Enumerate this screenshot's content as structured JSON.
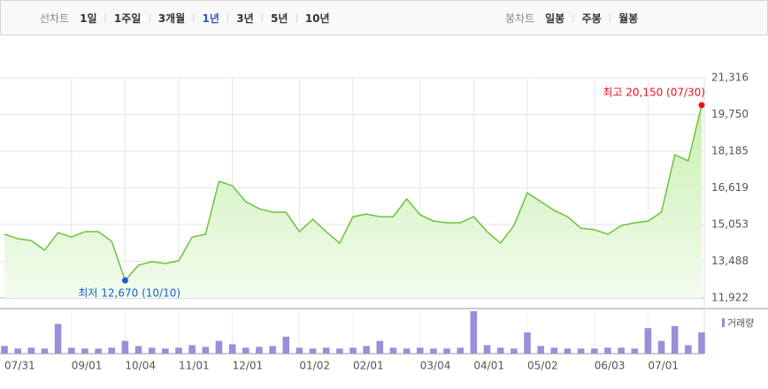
{
  "toolbar": {
    "line_label": "선차트",
    "periods": [
      "1일",
      "1주일",
      "3개월",
      "1년",
      "3년",
      "5년",
      "10년"
    ],
    "selected_period": "1년",
    "candle_label": "봉차트",
    "candle_periods": [
      "일봉",
      "주봉",
      "월봉"
    ]
  },
  "chart_data": [
    {
      "type": "area",
      "color": "#6cc33c",
      "categories": [
        "07/31",
        null,
        null,
        null,
        null,
        "09/01",
        null,
        null,
        null,
        "10/04",
        null,
        null,
        null,
        "11/01",
        null,
        null,
        null,
        "12/01",
        null,
        null,
        null,
        null,
        "01/02",
        null,
        null,
        null,
        "02/01",
        null,
        null,
        null,
        null,
        "03/04",
        null,
        null,
        null,
        "04/01",
        null,
        null,
        null,
        "05/02",
        null,
        null,
        null,
        null,
        "06/03",
        null,
        null,
        null,
        "07/01",
        null,
        null,
        null,
        null
      ],
      "values": [
        14640,
        14450,
        14370,
        13960,
        14710,
        14520,
        14750,
        14750,
        14340,
        12670,
        13320,
        13470,
        13390,
        13510,
        14520,
        14640,
        16900,
        16710,
        16030,
        15730,
        15580,
        15580,
        14750,
        15280,
        14750,
        14260,
        15390,
        15500,
        15390,
        15390,
        16150,
        15470,
        15200,
        15130,
        15130,
        15390,
        14750,
        14260,
        15010,
        16410,
        16030,
        15660,
        15390,
        14900,
        14830,
        14640,
        15010,
        15130,
        15200,
        15580,
        18030,
        17770,
        20150
      ],
      "ylim": [
        11922,
        21316
      ],
      "yticks": [
        {
          "value": 11922,
          "label": "11,922"
        },
        {
          "value": 13488,
          "label": "13,488"
        },
        {
          "value": 15053,
          "label": "15,053"
        },
        {
          "value": 16619,
          "label": "16,619"
        },
        {
          "value": 18185,
          "label": "18,185"
        },
        {
          "value": 19750,
          "label": "19,750"
        },
        {
          "value": 21316,
          "label": "21,316"
        }
      ],
      "grid": true,
      "high_color": "#e8111b",
      "low_color": "#1a5fd1",
      "annotations": [
        "최고 20,150 (07/30)",
        "최저 12,670 (10/10)"
      ]
    },
    {
      "type": "bar",
      "series": [
        {
          "name": "거래량",
          "color": "#9a8fd8",
          "values": [
            18,
            12,
            14,
            12,
            70,
            14,
            12,
            12,
            14,
            30,
            18,
            14,
            12,
            14,
            20,
            16,
            30,
            22,
            14,
            16,
            18,
            40,
            14,
            12,
            14,
            12,
            14,
            18,
            30,
            14,
            12,
            14,
            12,
            12,
            14,
            100,
            20,
            14,
            12,
            50,
            18,
            14,
            12,
            12,
            12,
            14,
            14,
            12,
            60,
            30,
            65,
            20,
            50
          ]
        }
      ],
      "ylim": [
        0,
        100
      ]
    }
  ]
}
